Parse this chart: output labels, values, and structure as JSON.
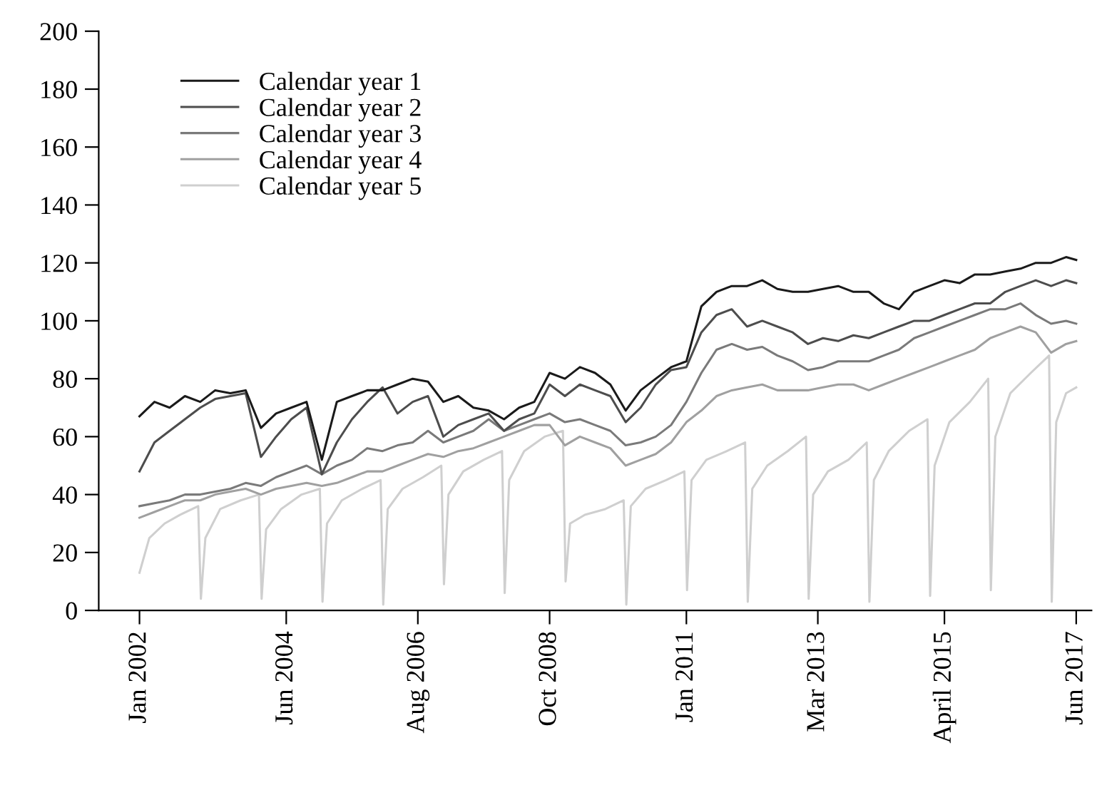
{
  "chart_data": {
    "type": "line",
    "xlim": [
      "2001-05",
      "2017-09"
    ],
    "xticks": [
      {
        "value": "2002-01",
        "label": "Jan 2002"
      },
      {
        "value": "2004-06",
        "label": "Jun 2004"
      },
      {
        "value": "2006-08",
        "label": "Aug 2006"
      },
      {
        "value": "2008-10",
        "label": "Oct 2008"
      },
      {
        "value": "2011-01",
        "label": "Jan 2011"
      },
      {
        "value": "2013-03",
        "label": "Mar 2013"
      },
      {
        "value": "2015-04",
        "label": "April 2015"
      },
      {
        "value": "2017-06",
        "label": "Jun 2017"
      }
    ],
    "ylim": [
      0,
      200
    ],
    "yticks": [
      0,
      20,
      40,
      60,
      80,
      100,
      120,
      140,
      160,
      180,
      200
    ],
    "grid": false,
    "legend": "top left",
    "marker": "none",
    "line_style": "solid",
    "series": [
      {
        "name": "Calendar year 1",
        "color": "#1a1a1a",
        "x": [
          "2002-01",
          "2002-04",
          "2002-07",
          "2002-10",
          "2003-01",
          "2003-04",
          "2003-07",
          "2003-10",
          "2004-01",
          "2004-04",
          "2004-07",
          "2004-10",
          "2005-01",
          "2005-04",
          "2005-07",
          "2005-10",
          "2006-01",
          "2006-04",
          "2006-07",
          "2006-10",
          "2007-01",
          "2007-04",
          "2007-07",
          "2007-10",
          "2008-01",
          "2008-04",
          "2008-07",
          "2008-10",
          "2009-01",
          "2009-04",
          "2009-07",
          "2009-10",
          "2010-01",
          "2010-04",
          "2010-07",
          "2010-10",
          "2011-01",
          "2011-04",
          "2011-07",
          "2011-10",
          "2012-01",
          "2012-04",
          "2012-07",
          "2012-10",
          "2013-01",
          "2013-04",
          "2013-07",
          "2013-10",
          "2014-01",
          "2014-04",
          "2014-07",
          "2014-10",
          "2015-01",
          "2015-04",
          "2015-07",
          "2015-10",
          "2016-01",
          "2016-04",
          "2016-07",
          "2016-10",
          "2017-01",
          "2017-04",
          "2017-06"
        ],
        "values": [
          67,
          72,
          70,
          74,
          72,
          76,
          75,
          76,
          63,
          68,
          70,
          72,
          52,
          72,
          74,
          76,
          76,
          78,
          80,
          79,
          72,
          74,
          70,
          69,
          66,
          70,
          72,
          82,
          80,
          84,
          82,
          78,
          69,
          76,
          80,
          84,
          86,
          105,
          110,
          112,
          112,
          114,
          111,
          110,
          110,
          111,
          112,
          110,
          110,
          106,
          104,
          110,
          112,
          114,
          113,
          116,
          116,
          117,
          118,
          120,
          120,
          122,
          121
        ]
      },
      {
        "name": "Calendar year 2",
        "color": "#4d4d4d",
        "x": [
          "2002-01",
          "2002-04",
          "2002-07",
          "2002-10",
          "2003-01",
          "2003-04",
          "2003-07",
          "2003-10",
          "2004-01",
          "2004-04",
          "2004-07",
          "2004-10",
          "2005-01",
          "2005-04",
          "2005-07",
          "2005-10",
          "2006-01",
          "2006-04",
          "2006-07",
          "2006-10",
          "2007-01",
          "2007-04",
          "2007-07",
          "2007-10",
          "2008-01",
          "2008-04",
          "2008-07",
          "2008-10",
          "2009-01",
          "2009-04",
          "2009-07",
          "2009-10",
          "2010-01",
          "2010-04",
          "2010-07",
          "2010-10",
          "2011-01",
          "2011-04",
          "2011-07",
          "2011-10",
          "2012-01",
          "2012-04",
          "2012-07",
          "2012-10",
          "2013-01",
          "2013-04",
          "2013-07",
          "2013-10",
          "2014-01",
          "2014-04",
          "2014-07",
          "2014-10",
          "2015-01",
          "2015-04",
          "2015-07",
          "2015-10",
          "2016-01",
          "2016-04",
          "2016-07",
          "2016-10",
          "2017-01",
          "2017-04",
          "2017-06"
        ],
        "values": [
          48,
          58,
          62,
          66,
          70,
          73,
          74,
          75,
          53,
          60,
          66,
          70,
          47,
          58,
          66,
          72,
          77,
          68,
          72,
          74,
          60,
          64,
          66,
          68,
          62,
          66,
          68,
          78,
          74,
          78,
          76,
          74,
          65,
          70,
          78,
          83,
          84,
          96,
          102,
          104,
          98,
          100,
          98,
          96,
          92,
          94,
          93,
          95,
          94,
          96,
          98,
          100,
          100,
          102,
          104,
          106,
          106,
          110,
          112,
          114,
          112,
          114,
          113
        ]
      },
      {
        "name": "Calendar year 3",
        "color": "#7a7a7a",
        "x": [
          "2002-01",
          "2002-04",
          "2002-07",
          "2002-10",
          "2003-01",
          "2003-04",
          "2003-07",
          "2003-10",
          "2004-01",
          "2004-04",
          "2004-07",
          "2004-10",
          "2005-01",
          "2005-04",
          "2005-07",
          "2005-10",
          "2006-01",
          "2006-04",
          "2006-07",
          "2006-10",
          "2007-01",
          "2007-04",
          "2007-07",
          "2007-10",
          "2008-01",
          "2008-04",
          "2008-07",
          "2008-10",
          "2009-01",
          "2009-04",
          "2009-07",
          "2009-10",
          "2010-01",
          "2010-04",
          "2010-07",
          "2010-10",
          "2011-01",
          "2011-04",
          "2011-07",
          "2011-10",
          "2012-01",
          "2012-04",
          "2012-07",
          "2012-10",
          "2013-01",
          "2013-04",
          "2013-07",
          "2013-10",
          "2014-01",
          "2014-04",
          "2014-07",
          "2014-10",
          "2015-01",
          "2015-04",
          "2015-07",
          "2015-10",
          "2016-01",
          "2016-04",
          "2016-07",
          "2016-10",
          "2017-01",
          "2017-04",
          "2017-06"
        ],
        "values": [
          36,
          37,
          38,
          40,
          40,
          41,
          42,
          44,
          43,
          46,
          48,
          50,
          47,
          50,
          52,
          56,
          55,
          57,
          58,
          62,
          58,
          60,
          62,
          66,
          62,
          64,
          66,
          68,
          65,
          66,
          64,
          62,
          57,
          58,
          60,
          64,
          72,
          82,
          90,
          92,
          90,
          91,
          88,
          86,
          83,
          84,
          86,
          86,
          86,
          88,
          90,
          94,
          96,
          98,
          100,
          102,
          104,
          104,
          106,
          102,
          99,
          100,
          99
        ]
      },
      {
        "name": "Calendar year 4",
        "color": "#a0a0a0",
        "x": [
          "2002-01",
          "2002-04",
          "2002-07",
          "2002-10",
          "2003-01",
          "2003-04",
          "2003-07",
          "2003-10",
          "2004-01",
          "2004-04",
          "2004-07",
          "2004-10",
          "2005-01",
          "2005-04",
          "2005-07",
          "2005-10",
          "2006-01",
          "2006-04",
          "2006-07",
          "2006-10",
          "2007-01",
          "2007-04",
          "2007-07",
          "2007-10",
          "2008-01",
          "2008-04",
          "2008-07",
          "2008-10",
          "2009-01",
          "2009-04",
          "2009-07",
          "2009-10",
          "2010-01",
          "2010-04",
          "2010-07",
          "2010-10",
          "2011-01",
          "2011-04",
          "2011-07",
          "2011-10",
          "2012-01",
          "2012-04",
          "2012-07",
          "2012-10",
          "2013-01",
          "2013-04",
          "2013-07",
          "2013-10",
          "2014-01",
          "2014-04",
          "2014-07",
          "2014-10",
          "2015-01",
          "2015-04",
          "2015-07",
          "2015-10",
          "2016-01",
          "2016-04",
          "2016-07",
          "2016-10",
          "2017-01",
          "2017-04",
          "2017-06"
        ],
        "values": [
          32,
          34,
          36,
          38,
          38,
          40,
          41,
          42,
          40,
          42,
          43,
          44,
          43,
          44,
          46,
          48,
          48,
          50,
          52,
          54,
          53,
          55,
          56,
          58,
          60,
          62,
          64,
          64,
          57,
          60,
          58,
          56,
          50,
          52,
          54,
          58,
          65,
          69,
          74,
          76,
          77,
          78,
          76,
          76,
          76,
          77,
          78,
          78,
          76,
          78,
          80,
          82,
          84,
          86,
          88,
          90,
          94,
          96,
          98,
          96,
          89,
          92,
          93
        ]
      },
      {
        "name": "Calendar year 5",
        "color": "#cfcfcf",
        "x": [
          "2002-01-01",
          "2002-03",
          "2002-06",
          "2002-09",
          "2002-12-20",
          "2003-01-05",
          "2003-02",
          "2003-05",
          "2003-09",
          "2003-12-20",
          "2004-01-05",
          "2004-02",
          "2004-05",
          "2004-09",
          "2004-12-20",
          "2005-01-05",
          "2005-02",
          "2005-05",
          "2005-09",
          "2005-12-20",
          "2006-01-05",
          "2006-02",
          "2006-05",
          "2006-09",
          "2006-12-20",
          "2007-01-05",
          "2007-02",
          "2007-05",
          "2007-09",
          "2007-12-20",
          "2008-01-05",
          "2008-02",
          "2008-05",
          "2008-09",
          "2008-12-20",
          "2009-01-05",
          "2009-02",
          "2009-05",
          "2009-09",
          "2009-12-20",
          "2010-01-05",
          "2010-02",
          "2010-05",
          "2010-09",
          "2010-12-20",
          "2011-01-05",
          "2011-02",
          "2011-05",
          "2011-09",
          "2011-12-20",
          "2012-01-05",
          "2012-02",
          "2012-05",
          "2012-09",
          "2012-12-20",
          "2013-01-05",
          "2013-02",
          "2013-05",
          "2013-09",
          "2013-12-20",
          "2014-01-05",
          "2014-02",
          "2014-05",
          "2014-09",
          "2014-12-20",
          "2015-01-05",
          "2015-02",
          "2015-05",
          "2015-09",
          "2015-12-20",
          "2016-01-05",
          "2016-02",
          "2016-05",
          "2016-09",
          "2016-12-20",
          "2017-01-05",
          "2017-02",
          "2017-04",
          "2017-06"
        ],
        "values": [
          13,
          25,
          30,
          33,
          36,
          4,
          25,
          35,
          38,
          40,
          4,
          28,
          35,
          40,
          42,
          3,
          30,
          38,
          42,
          45,
          2,
          35,
          42,
          46,
          50,
          9,
          40,
          48,
          52,
          55,
          6,
          45,
          55,
          60,
          62,
          10,
          30,
          33,
          35,
          38,
          2,
          36,
          42,
          45,
          48,
          7,
          45,
          52,
          55,
          58,
          3,
          42,
          50,
          55,
          60,
          4,
          40,
          48,
          52,
          58,
          3,
          45,
          55,
          62,
          66,
          5,
          50,
          65,
          72,
          80,
          7,
          60,
          75,
          82,
          88,
          3,
          65,
          75,
          77
        ]
      }
    ]
  }
}
